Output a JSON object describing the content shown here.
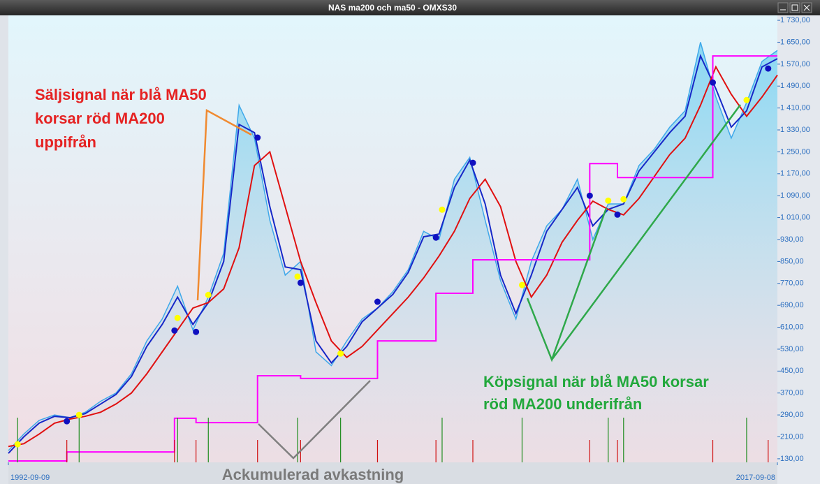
{
  "chart_data": {
    "type": "line",
    "window_title": "NAS ma200 och ma50 - OMXS30",
    "annotations": [
      {
        "lines": [
          "Säljsignal när blå MA50",
          "korsar röd MA200",
          "uppifrån"
        ],
        "color": "#e52222"
      },
      {
        "lines": [
          "Köpsignal när blå MA50 korsar",
          "röd MA200 underifrån"
        ],
        "color": "#22a83c"
      },
      {
        "lines": [
          "Ackumulerad avkastning"
        ],
        "color": "#7a7a7a"
      }
    ],
    "xlim": [
      1992.7,
      2017.7
    ],
    "xticks": [
      {
        "value": 1992.7,
        "label": "1992-09-09"
      },
      {
        "value": 2017.7,
        "label": "2017-09-08"
      }
    ],
    "ylim": [
      117,
      1748
    ],
    "yticks": [
      {
        "value": 130,
        "label": "130,00"
      },
      {
        "value": 210,
        "label": "210,00"
      },
      {
        "value": 290,
        "label": "290,00"
      },
      {
        "value": 370,
        "label": "370,00"
      },
      {
        "value": 450,
        "label": "450,00"
      },
      {
        "value": 530,
        "label": "530,00"
      },
      {
        "value": 610,
        "label": "610,00"
      },
      {
        "value": 690,
        "label": "690,00"
      },
      {
        "value": 770,
        "label": "770,00"
      },
      {
        "value": 850,
        "label": "850,00"
      },
      {
        "value": 930,
        "label": "930,00"
      },
      {
        "value": 1010,
        "label": "1 010,00"
      },
      {
        "value": 1090,
        "label": "1 090,00"
      },
      {
        "value": 1170,
        "label": "1 170,00"
      },
      {
        "value": 1250,
        "label": "1 250,00"
      },
      {
        "value": 1330,
        "label": "1 330,00"
      },
      {
        "value": 1410,
        "label": "1 410,00"
      },
      {
        "value": 1490,
        "label": "1 490,00"
      },
      {
        "value": 1570,
        "label": "1 570,00"
      },
      {
        "value": 1650,
        "label": "1 650,00"
      },
      {
        "value": 1730,
        "label": "1 730,00"
      }
    ],
    "series": [
      {
        "style": "area",
        "color": "#3ea8ea",
        "x": [
          1992.7,
          1993.2,
          1993.7,
          1994.2,
          1994.7,
          1995.2,
          1995.7,
          1996.2,
          1996.7,
          1997.2,
          1997.7,
          1998.2,
          1998.7,
          1999.2,
          1999.7,
          2000.2,
          2000.7,
          2001.2,
          2001.7,
          2002.2,
          2002.7,
          2003.2,
          2003.7,
          2004.2,
          2004.7,
          2005.2,
          2005.7,
          2006.2,
          2006.7,
          2007.2,
          2007.7,
          2008.2,
          2008.7,
          2009.2,
          2009.7,
          2010.2,
          2010.7,
          2011.2,
          2011.7,
          2012.2,
          2012.7,
          2013.2,
          2013.7,
          2014.2,
          2014.7,
          2015.2,
          2015.7,
          2016.2,
          2016.7,
          2017.2,
          2017.7
        ],
        "values": [
          160,
          220,
          270,
          290,
          280,
          300,
          340,
          370,
          440,
          560,
          640,
          760,
          600,
          720,
          880,
          1420,
          1300,
          1000,
          800,
          850,
          520,
          470,
          560,
          640,
          680,
          740,
          820,
          960,
          930,
          1150,
          1230,
          1000,
          780,
          640,
          850,
          980,
          1040,
          1150,
          930,
          1060,
          1060,
          1200,
          1260,
          1340,
          1400,
          1650,
          1450,
          1300,
          1430,
          1580,
          1620
        ]
      },
      {
        "style": "line",
        "color": "#1628c8",
        "x": [
          1992.7,
          1993.2,
          1993.7,
          1994.2,
          1994.7,
          1995.2,
          1995.7,
          1996.2,
          1996.7,
          1997.2,
          1997.7,
          1998.2,
          1998.7,
          1999.2,
          1999.7,
          2000.2,
          2000.7,
          2001.2,
          2001.7,
          2002.2,
          2002.7,
          2003.2,
          2003.7,
          2004.2,
          2004.7,
          2005.2,
          2005.7,
          2006.2,
          2006.7,
          2007.2,
          2007.7,
          2008.2,
          2008.7,
          2009.2,
          2009.7,
          2010.2,
          2010.7,
          2011.2,
          2011.7,
          2012.2,
          2012.7,
          2013.2,
          2013.7,
          2014.2,
          2014.7,
          2015.2,
          2015.7,
          2016.2,
          2016.7,
          2017.2,
          2017.7
        ],
        "values": [
          150,
          210,
          260,
          285,
          280,
          295,
          330,
          365,
          430,
          540,
          620,
          720,
          620,
          700,
          850,
          1350,
          1320,
          1050,
          830,
          820,
          560,
          480,
          540,
          630,
          680,
          730,
          810,
          940,
          950,
          1120,
          1220,
          1060,
          800,
          660,
          800,
          960,
          1040,
          1120,
          980,
          1040,
          1060,
          1180,
          1250,
          1320,
          1380,
          1600,
          1480,
          1340,
          1400,
          1560,
          1590
        ]
      },
      {
        "style": "line",
        "color": "#e01010",
        "x": [
          1992.7,
          1993.2,
          1993.7,
          1994.2,
          1994.7,
          1995.2,
          1995.7,
          1996.2,
          1996.7,
          1997.2,
          1997.7,
          1998.2,
          1998.7,
          1999.2,
          1999.7,
          2000.2,
          2000.7,
          2001.2,
          2001.7,
          2002.2,
          2002.7,
          2003.2,
          2003.7,
          2004.2,
          2004.7,
          2005.2,
          2005.7,
          2006.2,
          2006.7,
          2007.2,
          2007.7,
          2008.2,
          2008.7,
          2009.2,
          2009.7,
          2010.2,
          2010.7,
          2011.2,
          2011.7,
          2012.2,
          2012.7,
          2013.2,
          2013.7,
          2014.2,
          2014.7,
          2015.2,
          2015.7,
          2016.2,
          2016.7,
          2017.2,
          2017.7
        ],
        "values": [
          175,
          185,
          220,
          260,
          275,
          285,
          300,
          330,
          370,
          440,
          520,
          600,
          680,
          700,
          750,
          900,
          1200,
          1250,
          1050,
          850,
          700,
          560,
          500,
          540,
          600,
          660,
          720,
          790,
          870,
          960,
          1080,
          1150,
          1050,
          850,
          720,
          800,
          920,
          1000,
          1070,
          1040,
          1020,
          1080,
          1160,
          1240,
          1300,
          1420,
          1560,
          1460,
          1380,
          1450,
          1530
        ]
      },
      {
        "style": "step",
        "color": "#ff00ff",
        "x": [
          1992.7,
          1994.6,
          1998.1,
          1998.8,
          2000.8,
          2002.2,
          2004.7,
          2006.6,
          2007.8,
          2011.6,
          2012.5,
          2015.6,
          2017.7
        ],
        "values": [
          122,
          155,
          278,
          262,
          433,
          423,
          560,
          734,
          856,
          1207,
          1156,
          1600,
          1600
        ]
      },
      {
        "style": "points",
        "color": "#ffff00",
        "bar_color": "#1e8c1e",
        "x": [
          1993.0,
          1995.0,
          1998.2,
          1999.2,
          2002.1,
          2003.5,
          2006.8,
          2009.4,
          2012.2,
          2012.7,
          2016.7
        ],
        "values": [
          183,
          290,
          644,
          728,
          795,
          514,
          1039,
          764,
          1072,
          1077,
          1439
        ]
      },
      {
        "style": "points",
        "color": "#1010c0",
        "bar_color": "#d01010",
        "x": [
          1994.6,
          1998.1,
          1998.8,
          2000.8,
          2002.2,
          2004.7,
          2006.6,
          2007.8,
          2011.6,
          2012.5,
          2015.6,
          2017.4
        ],
        "values": [
          267,
          598,
          593,
          1302,
          772,
          703,
          937,
          1210,
          1090,
          1021,
          1503,
          1554
        ]
      }
    ]
  }
}
